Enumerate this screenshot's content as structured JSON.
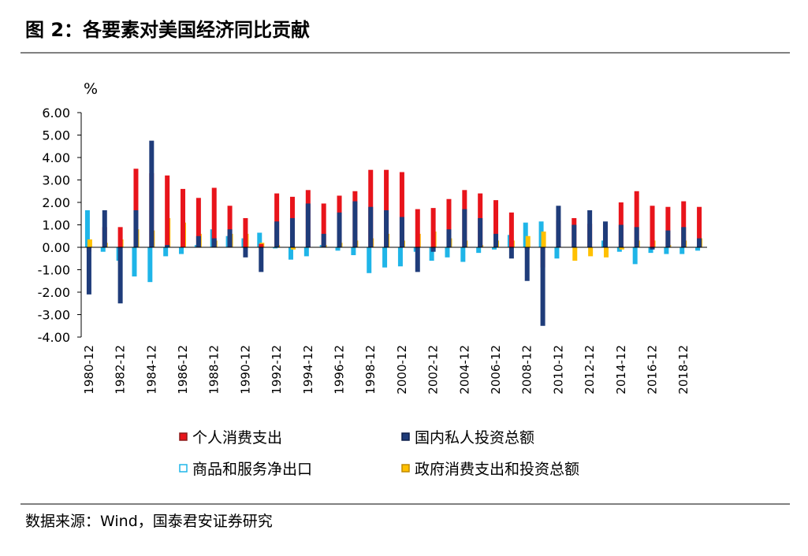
{
  "chart_data": {
    "type": "bar",
    "title": "图 2：各要素对美国经济同比贡献",
    "y_unit": "%",
    "source": "数据来源：Wind，国泰君安证券研究",
    "categories": [
      "1980-12",
      null,
      "1982-12",
      null,
      "1984-12",
      null,
      "1986-12",
      null,
      "1988-12",
      null,
      "1990-12",
      null,
      "1992-12",
      null,
      "1994-12",
      null,
      "1996-12",
      null,
      "1998-12",
      null,
      "2000-12",
      null,
      "2002-12",
      null,
      "2004-12",
      null,
      "2006-12",
      null,
      "2008-12",
      null,
      "2010-12",
      null,
      "2012-12",
      null,
      "2014-12",
      null,
      "2016-12",
      null,
      "2018-12",
      null
    ],
    "series": [
      {
        "name": "个人消费支出",
        "color": "#e8141b",
        "border": "#8b1a1a",
        "values": [
          -0.2,
          0.9,
          0.9,
          3.5,
          3.3,
          3.2,
          2.6,
          2.2,
          2.65,
          1.85,
          1.3,
          0.15,
          2.4,
          2.25,
          2.55,
          1.95,
          2.3,
          2.5,
          3.45,
          3.45,
          3.35,
          1.7,
          1.75,
          2.15,
          2.55,
          2.4,
          2.1,
          1.55,
          -0.1,
          -0.9,
          1.2,
          1.3,
          1.05,
          1.05,
          2.0,
          2.5,
          1.85,
          1.8,
          2.05,
          1.8
        ]
      },
      {
        "name": "国内私人投资总额",
        "color": "#1f3c7a",
        "border": "#0d1f4a",
        "values": [
          -2.1,
          1.65,
          -2.5,
          1.65,
          4.75,
          0.1,
          0.0,
          0.5,
          0.4,
          0.8,
          -0.45,
          -1.1,
          1.15,
          1.3,
          1.95,
          0.6,
          1.55,
          2.05,
          1.8,
          1.65,
          1.35,
          -1.1,
          -0.2,
          0.8,
          1.7,
          1.3,
          0.6,
          -0.5,
          -1.5,
          -3.5,
          1.85,
          1.0,
          1.65,
          1.15,
          1.0,
          0.9,
          -0.1,
          0.75,
          0.9,
          0.4
        ]
      },
      {
        "name": "商品和服务净出口",
        "color": "#1fb5e8",
        "border": "#1fb5e8",
        "values": [
          1.65,
          -0.2,
          -0.6,
          -1.3,
          -1.55,
          -0.4,
          -0.3,
          0.1,
          0.8,
          0.5,
          0.4,
          0.65,
          -0.05,
          -0.55,
          -0.4,
          0.1,
          -0.15,
          -0.35,
          -1.15,
          -0.9,
          -0.85,
          -0.2,
          -0.6,
          -0.45,
          -0.65,
          -0.25,
          -0.1,
          0.55,
          1.1,
          1.15,
          -0.5,
          0.0,
          0.0,
          0.3,
          -0.2,
          -0.75,
          -0.25,
          -0.3,
          -0.3,
          -0.15
        ]
      },
      {
        "name": "政府消费支出和投资总额",
        "color": "#ffc000",
        "border": "#c08a00",
        "values": [
          0.35,
          0.2,
          0.35,
          0.8,
          0.75,
          1.3,
          1.1,
          0.6,
          0.3,
          0.6,
          0.6,
          0.2,
          0.1,
          -0.1,
          0.0,
          0.1,
          0.2,
          0.3,
          0.4,
          0.6,
          0.3,
          0.6,
          0.7,
          0.4,
          0.3,
          0.1,
          0.3,
          0.3,
          0.5,
          0.7,
          0.0,
          -0.6,
          -0.4,
          -0.45,
          -0.1,
          0.3,
          0.3,
          0.1,
          0.3,
          0.4
        ]
      }
    ],
    "ylim": [
      -4,
      6
    ],
    "yticks": [
      {
        "value": -4,
        "label": "-4.00"
      },
      {
        "value": -3,
        "label": "-3.00"
      },
      {
        "value": -2,
        "label": "-2.00"
      },
      {
        "value": -1,
        "label": "-1.00"
      },
      {
        "value": 0,
        "label": "0.00"
      },
      {
        "value": 1,
        "label": "1.00"
      },
      {
        "value": 2,
        "label": "2.00"
      },
      {
        "value": 3,
        "label": "3.00"
      },
      {
        "value": 4,
        "label": "4.00"
      },
      {
        "value": 5,
        "label": "5.00"
      },
      {
        "value": 6,
        "label": "6.00"
      }
    ]
  }
}
